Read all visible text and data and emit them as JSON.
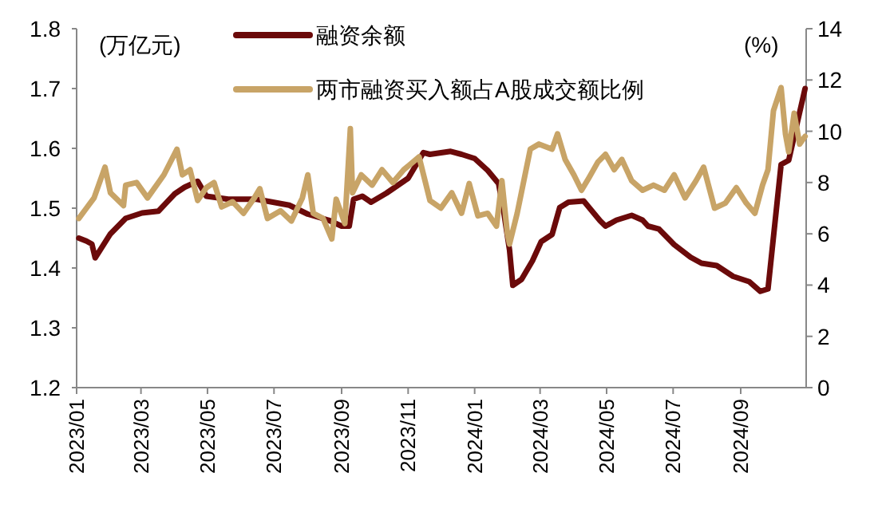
{
  "chart_data": {
    "type": "line",
    "ylabel": "(万亿元)",
    "y2label": "(%)",
    "legend": "top",
    "xlim": [
      "2023-01-01",
      "2024-10-31"
    ],
    "xticks": [
      {
        "value": "2023-01-01",
        "label": "2023/01"
      },
      {
        "value": "2023-03-01",
        "label": "2023/03"
      },
      {
        "value": "2023-05-01",
        "label": "2023/05"
      },
      {
        "value": "2023-07-01",
        "label": "2023/07"
      },
      {
        "value": "2023-09-01",
        "label": "2023/09"
      },
      {
        "value": "2023-11-01",
        "label": "2023/11"
      },
      {
        "value": "2024-01-01",
        "label": "2024/01"
      },
      {
        "value": "2024-03-01",
        "label": "2024/03"
      },
      {
        "value": "2024-05-01",
        "label": "2024/05"
      },
      {
        "value": "2024-07-01",
        "label": "2024/07"
      },
      {
        "value": "2024-09-01",
        "label": "2024/09"
      }
    ],
    "ylim": [
      1.2,
      1.8
    ],
    "yticks": [
      1.2,
      1.3,
      1.4,
      1.5,
      1.6,
      1.7,
      1.8
    ],
    "y2lim": [
      0,
      14
    ],
    "y2ticks": [
      0,
      2,
      4,
      6,
      8,
      10,
      12,
      14
    ],
    "series": [
      {
        "name": "融资余额",
        "color": "#6b0a0a",
        "x": [
          "2023-01-03",
          "2023-01-10",
          "2023-01-15",
          "2023-01-18",
          "2023-02-01",
          "2023-02-15",
          "2023-03-02",
          "2023-03-17",
          "2023-04-01",
          "2023-04-10",
          "2023-04-22",
          "2023-04-30",
          "2023-05-20",
          "2023-06-15",
          "2023-07-15",
          "2023-08-01",
          "2023-08-20",
          "2023-09-01",
          "2023-09-08",
          "2023-09-12",
          "2023-09-20",
          "2023-09-28",
          "2023-10-12",
          "2023-11-01",
          "2023-11-15",
          "2023-11-21",
          "2023-12-10",
          "2023-12-20",
          "2024-01-01",
          "2024-01-13",
          "2024-01-23",
          "2024-01-28",
          "2024-02-02",
          "2024-02-05",
          "2024-02-13",
          "2024-02-23",
          "2024-03-02",
          "2024-03-12",
          "2024-03-19",
          "2024-03-27",
          "2024-04-10",
          "2024-04-25",
          "2024-04-30",
          "2024-05-10",
          "2024-05-24",
          "2024-06-03",
          "2024-06-08",
          "2024-06-18",
          "2024-07-02",
          "2024-07-17",
          "2024-07-27",
          "2024-08-10",
          "2024-08-25",
          "2024-09-09",
          "2024-09-19",
          "2024-09-26",
          "2024-10-08",
          "2024-10-15",
          "2024-10-23",
          "2024-10-30"
        ],
        "values": [
          1.45,
          1.445,
          1.44,
          1.417,
          1.457,
          1.483,
          1.492,
          1.495,
          1.524,
          1.535,
          1.545,
          1.52,
          1.515,
          1.515,
          1.505,
          1.49,
          1.48,
          1.47,
          1.47,
          1.515,
          1.52,
          1.51,
          1.525,
          1.55,
          1.593,
          1.59,
          1.595,
          1.59,
          1.583,
          1.563,
          1.541,
          1.49,
          1.43,
          1.371,
          1.381,
          1.412,
          1.444,
          1.456,
          1.501,
          1.51,
          1.512,
          1.479,
          1.47,
          1.48,
          1.488,
          1.48,
          1.47,
          1.465,
          1.439,
          1.418,
          1.408,
          1.404,
          1.386,
          1.377,
          1.361,
          1.365,
          1.573,
          1.58,
          1.644,
          1.7
        ]
      },
      {
        "name": "两市融资买入额占A股成交额比例",
        "color": "#c8a467",
        "axis": "y2",
        "x": [
          "2023-01-03",
          "2023-01-10",
          "2023-01-17",
          "2023-01-27",
          "2023-02-01",
          "2023-02-13",
          "2023-02-15",
          "2023-02-25",
          "2023-03-07",
          "2023-03-22",
          "2023-04-03",
          "2023-04-08",
          "2023-04-15",
          "2023-04-22",
          "2023-04-30",
          "2023-05-07",
          "2023-05-14",
          "2023-05-24",
          "2023-06-03",
          "2023-06-13",
          "2023-06-18",
          "2023-06-25",
          "2023-07-07",
          "2023-07-17",
          "2023-07-27",
          "2023-08-01",
          "2023-08-06",
          "2023-08-15",
          "2023-08-23",
          "2023-08-27",
          "2023-09-04",
          "2023-09-09",
          "2023-09-11",
          "2023-09-19",
          "2023-09-29",
          "2023-10-08",
          "2023-10-18",
          "2023-10-28",
          "2023-11-11",
          "2023-11-21",
          "2023-12-01",
          "2023-12-11",
          "2023-12-20",
          "2023-12-27",
          "2024-01-04",
          "2024-01-13",
          "2024-01-21",
          "2024-01-26",
          "2024-01-31",
          "2024-02-02",
          "2024-02-09",
          "2024-02-21",
          "2024-02-29",
          "2024-03-12",
          "2024-03-17",
          "2024-03-24",
          "2024-04-01",
          "2024-04-08",
          "2024-04-15",
          "2024-04-23",
          "2024-04-30",
          "2024-05-08",
          "2024-05-15",
          "2024-05-24",
          "2024-06-03",
          "2024-06-13",
          "2024-06-23",
          "2024-07-02",
          "2024-07-12",
          "2024-07-22",
          "2024-07-29",
          "2024-08-08",
          "2024-08-18",
          "2024-08-28",
          "2024-09-06",
          "2024-09-14",
          "2024-09-21",
          "2024-09-26",
          "2024-10-01",
          "2024-10-08",
          "2024-10-12",
          "2024-10-15",
          "2024-10-20",
          "2024-10-25",
          "2024-10-30"
        ],
        "values": [
          6.6,
          7.0,
          7.4,
          8.6,
          7.6,
          7.1,
          7.9,
          8.0,
          7.4,
          8.3,
          9.3,
          8.3,
          8.5,
          7.3,
          7.8,
          8.0,
          7.05,
          7.25,
          6.8,
          7.4,
          7.76,
          6.6,
          6.9,
          6.5,
          7.4,
          8.3,
          6.8,
          6.6,
          5.8,
          7.35,
          6.4,
          10.1,
          7.6,
          8.3,
          7.9,
          8.5,
          8.0,
          8.5,
          9.0,
          7.3,
          7.0,
          7.6,
          6.8,
          7.96,
          6.7,
          6.8,
          6.3,
          8.07,
          6.0,
          5.6,
          6.8,
          9.3,
          9.5,
          9.3,
          9.9,
          8.9,
          8.3,
          7.7,
          8.2,
          8.8,
          9.1,
          8.5,
          8.9,
          8.07,
          7.7,
          7.9,
          7.7,
          8.3,
          7.4,
          8.07,
          8.6,
          7.0,
          7.2,
          7.8,
          7.2,
          6.8,
          7.9,
          8.5,
          10.8,
          11.7,
          9.9,
          9.2,
          10.7,
          9.5,
          9.8
        ]
      }
    ]
  }
}
